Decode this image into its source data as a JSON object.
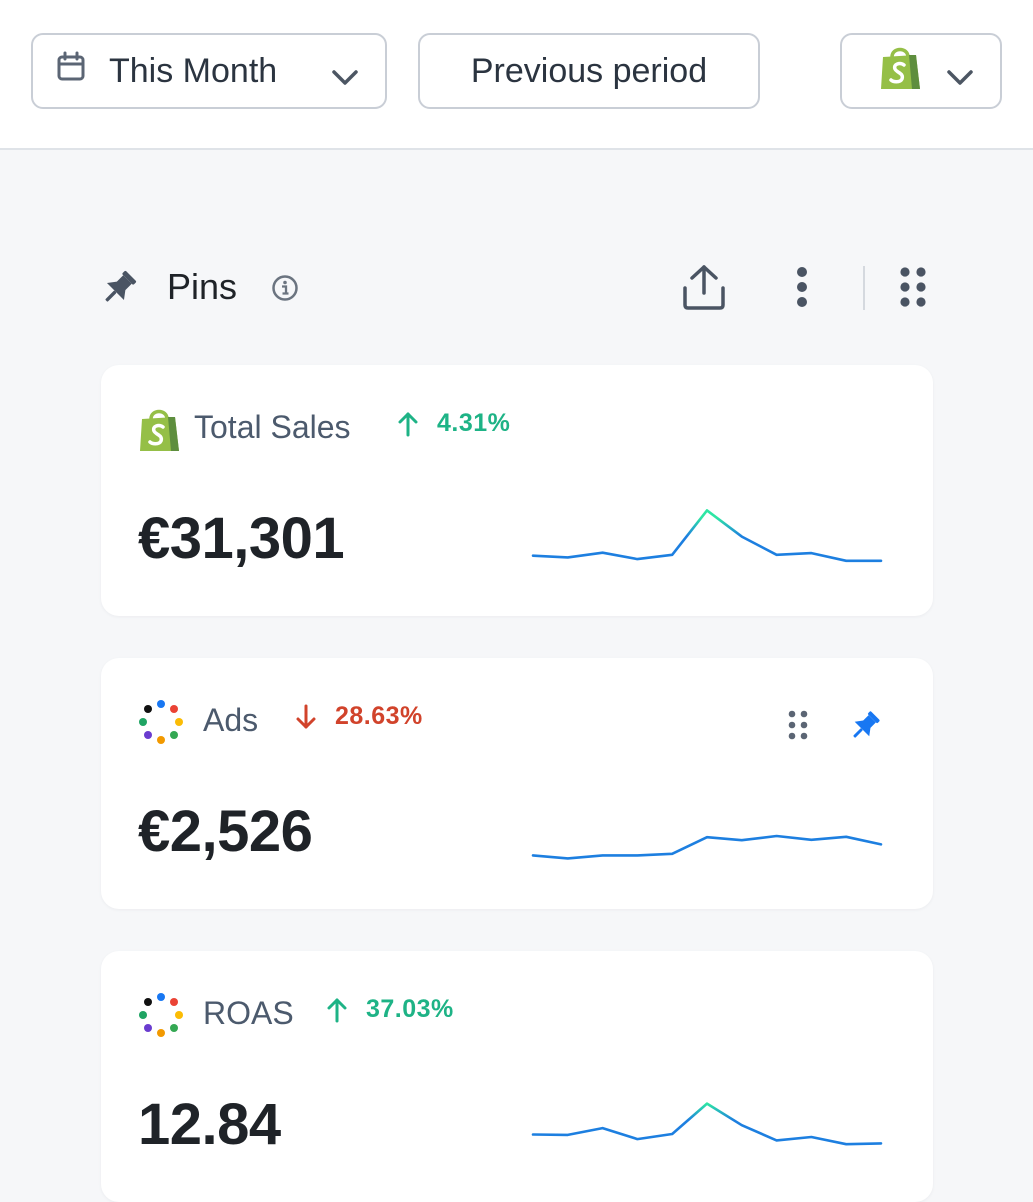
{
  "toolbar": {
    "date_range_label": "This Month",
    "compare_label": "Previous period",
    "calendar_icon": "calendar-icon",
    "store_icon": "shopify-bag-icon",
    "chevron_icon": "chevron-down-icon"
  },
  "pins": {
    "title": "Pins",
    "icons": [
      "pin-icon",
      "info-icon",
      "share-icon",
      "more-vertical-icon",
      "grid-icon"
    ]
  },
  "colors": {
    "positive": "#1eb386",
    "negative": "#d1432b",
    "accent_blue": "#1877f2",
    "spark_low": "#1d7fe0",
    "spark_high": "#2ee6a4",
    "shopify_green": "#95bf47"
  },
  "cards": [
    {
      "title": "Total Sales",
      "source_icon": "shopify-bag-icon",
      "delta": "4.31%",
      "delta_direction": "up",
      "value": "€31,301",
      "sparkline": [
        0.78,
        0.74,
        0.85,
        0.7,
        0.8,
        1.85,
        1.23,
        0.8,
        0.84,
        0.66,
        0.66
      ],
      "spark_color_split": 0.88
    },
    {
      "title": "Ads",
      "source_icon": "multi-channel-dots-icon",
      "delta": "28.63%",
      "delta_direction": "down",
      "value": "€2,526",
      "sparkline": [
        0.62,
        0.55,
        0.62,
        0.62,
        0.66,
        1.05,
        0.98,
        1.08,
        0.99,
        1.06,
        0.88
      ],
      "spark_color_split": 0.82,
      "actions": [
        "drag-handle-icon",
        "pin-icon"
      ]
    },
    {
      "title": "ROAS",
      "source_icon": "multi-channel-dots-icon",
      "delta": "37.03%",
      "delta_direction": "up",
      "value": "12.84",
      "sparkline": [
        0.95,
        0.94,
        1.1,
        0.84,
        0.96,
        1.68,
        1.17,
        0.81,
        0.89,
        0.72,
        0.74
      ],
      "spark_color_split": 0.92
    }
  ]
}
